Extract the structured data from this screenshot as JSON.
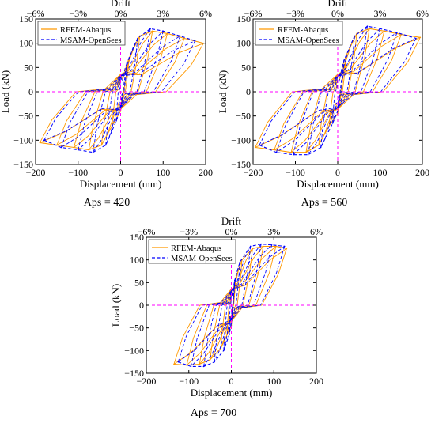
{
  "chart_data": [
    {
      "type": "line",
      "caption": "Aps = 420",
      "xlabel": "Displacement (mm)",
      "ylabel": "Load (kN)",
      "top_axis_label": "Drift",
      "xlim": [
        -200,
        200
      ],
      "ylim": [
        -150,
        150
      ],
      "xticks": [
        -200,
        -100,
        0,
        100,
        200
      ],
      "yticks": [
        -150,
        -100,
        -50,
        0,
        50,
        100,
        150
      ],
      "top_ticks": [
        {
          "x": -200,
          "label": "−6%"
        },
        {
          "x": -100,
          "label": "−3%"
        },
        {
          "x": 0,
          "label": "0%"
        },
        {
          "x": 100,
          "label": "3%"
        },
        {
          "x": 200,
          "label": "6%"
        }
      ],
      "grid": false,
      "legend_position": "top-left",
      "reference_lines": {
        "x": 0,
        "y": 0,
        "color": "#ff00ff"
      },
      "series": [
        {
          "name": "RFEM-Abaqus",
          "color": "#ff9900",
          "style": "solid",
          "peak_loads": [
            [
              -190,
              -105
            ],
            [
              -150,
              -110
            ],
            [
              -110,
              -115
            ],
            [
              -75,
              -120
            ],
            [
              -45,
              -110
            ],
            [
              -20,
              -70
            ],
            [
              0,
              -40
            ],
            [
              20,
              70
            ],
            [
              45,
              115
            ],
            [
              75,
              125
            ],
            [
              110,
              120
            ],
            [
              150,
              110
            ],
            [
              195,
              100
            ]
          ]
        },
        {
          "name": "MSAM-OpenSees",
          "color": "#0000ff",
          "style": "dashed",
          "peak_loads": [
            [
              -180,
              -100
            ],
            [
              -140,
              -115
            ],
            [
              -100,
              -120
            ],
            [
              -65,
              -125
            ],
            [
              -35,
              -110
            ],
            [
              -10,
              -60
            ],
            [
              0,
              -35
            ],
            [
              15,
              60
            ],
            [
              40,
              110
            ],
            [
              70,
              130
            ],
            [
              100,
              125
            ],
            [
              140,
              115
            ],
            [
              175,
              105
            ]
          ]
        }
      ]
    },
    {
      "type": "line",
      "caption": "Aps = 560",
      "xlabel": "Displacement (mm)",
      "ylabel": "Load (kN)",
      "top_axis_label": "Drift",
      "xlim": [
        -200,
        200
      ],
      "ylim": [
        -150,
        150
      ],
      "xticks": [
        -200,
        -100,
        0,
        100,
        200
      ],
      "yticks": [
        -150,
        -100,
        -50,
        0,
        50,
        100,
        150
      ],
      "top_ticks": [
        {
          "x": -200,
          "label": "−6%"
        },
        {
          "x": -100,
          "label": "−3%"
        },
        {
          "x": 0,
          "label": "0%"
        },
        {
          "x": 100,
          "label": "3%"
        },
        {
          "x": 200,
          "label": "6%"
        }
      ],
      "grid": false,
      "legend_position": "top-left",
      "reference_lines": {
        "x": 0,
        "y": 0,
        "color": "#ff00ff"
      },
      "series": [
        {
          "name": "RFEM-Abaqus",
          "color": "#ff9900",
          "style": "solid",
          "peak_loads": [
            [
              -195,
              -115
            ],
            [
              -150,
              -120
            ],
            [
              -110,
              -125
            ],
            [
              -75,
              -125
            ],
            [
              -45,
              -110
            ],
            [
              -20,
              -70
            ],
            [
              0,
              -45
            ],
            [
              20,
              75
            ],
            [
              45,
              120
            ],
            [
              75,
              130
            ],
            [
              110,
              125
            ],
            [
              150,
              118
            ],
            [
              195,
              112
            ]
          ]
        },
        {
          "name": "MSAM-OpenSees",
          "color": "#0000ff",
          "style": "dashed",
          "peak_loads": [
            [
              -185,
              -110
            ],
            [
              -145,
              -125
            ],
            [
              -105,
              -130
            ],
            [
              -70,
              -130
            ],
            [
              -40,
              -115
            ],
            [
              -12,
              -65
            ],
            [
              0,
              -40
            ],
            [
              15,
              65
            ],
            [
              40,
              115
            ],
            [
              70,
              135
            ],
            [
              100,
              130
            ],
            [
              140,
              122
            ],
            [
              185,
              110
            ]
          ]
        }
      ]
    },
    {
      "type": "line",
      "caption": "Aps = 700",
      "xlabel": "Displacement (mm)",
      "ylabel": "Load (kN)",
      "top_axis_label": "Drift",
      "xlim": [
        -200,
        200
      ],
      "ylim": [
        -150,
        150
      ],
      "xticks": [
        -200,
        -100,
        0,
        100,
        200
      ],
      "yticks": [
        -150,
        -100,
        -50,
        0,
        50,
        100,
        150
      ],
      "top_ticks": [
        {
          "x": -200,
          "label": "−6%"
        },
        {
          "x": -100,
          "label": "−3%"
        },
        {
          "x": 0,
          "label": "0%"
        },
        {
          "x": 100,
          "label": "3%"
        },
        {
          "x": 200,
          "label": "6%"
        }
      ],
      "grid": false,
      "legend_position": "top-left",
      "reference_lines": {
        "x": 0,
        "y": 0,
        "color": "#ff00ff"
      },
      "series": [
        {
          "name": "RFEM-Abaqus",
          "color": "#ff9900",
          "style": "solid",
          "peak_loads": [
            [
              -135,
              -130
            ],
            [
              -105,
              -132
            ],
            [
              -75,
              -130
            ],
            [
              -50,
              -120
            ],
            [
              -25,
              -95
            ],
            [
              -10,
              -65
            ],
            [
              0,
              -45
            ],
            [
              10,
              60
            ],
            [
              25,
              100
            ],
            [
              50,
              125
            ],
            [
              75,
              130
            ],
            [
              105,
              130
            ],
            [
              130,
              125
            ]
          ]
        },
        {
          "name": "MSAM-OpenSees",
          "color": "#0000ff",
          "style": "dashed",
          "peak_loads": [
            [
              -125,
              -125
            ],
            [
              -95,
              -135
            ],
            [
              -65,
              -135
            ],
            [
              -40,
              -125
            ],
            [
              -18,
              -100
            ],
            [
              -5,
              -65
            ],
            [
              0,
              -40
            ],
            [
              8,
              55
            ],
            [
              20,
              95
            ],
            [
              45,
              130
            ],
            [
              70,
              135
            ],
            [
              95,
              133
            ],
            [
              125,
              130
            ]
          ]
        }
      ]
    }
  ]
}
